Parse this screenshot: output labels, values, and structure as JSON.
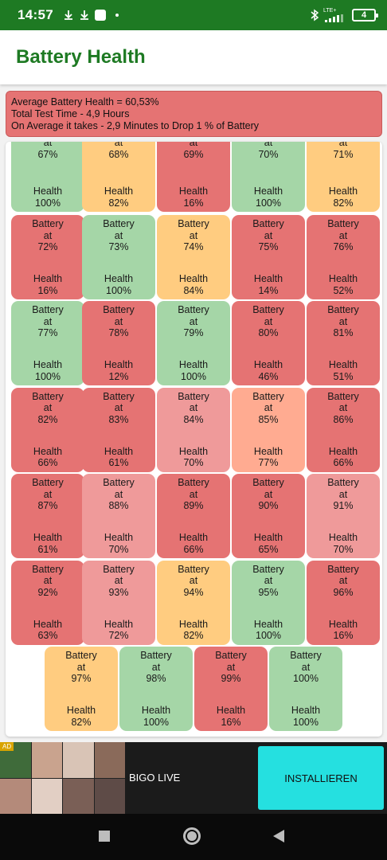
{
  "status_bar": {
    "time": "14:57",
    "network": "LTE+",
    "battery_level": "4",
    "icons": [
      "download-icon",
      "download-icon",
      "app-square-icon",
      "notification-dot-icon",
      "bluetooth-icon",
      "signal-icon",
      "battery-icon"
    ]
  },
  "app_bar": {
    "title": "Battery Health"
  },
  "summary": {
    "line1": "Average Battery Health = 60,53%",
    "line2": "Total Test Time - 4,9 Hours",
    "line3": "On Average it takes - 2,9 Minutes to Drop 1 % of Battery"
  },
  "colors": {
    "red": "#e57373",
    "green": "#a5d6a7",
    "orange": "#ffcc80",
    "pink": "#ef9a9a",
    "salmon": "#ffab91",
    "brand_green": "#1e7a23"
  },
  "cells": [
    {
      "top": "at",
      "pct": "67%",
      "health_label": "Health",
      "health": "100%",
      "color": "#a5d6a7"
    },
    {
      "top": "at",
      "pct": "68%",
      "health_label": "Health",
      "health": "82%",
      "color": "#ffcc80"
    },
    {
      "top": "at",
      "pct": "69%",
      "health_label": "Health",
      "health": "16%",
      "color": "#e57373"
    },
    {
      "top": "at",
      "pct": "70%",
      "health_label": "Health",
      "health": "100%",
      "color": "#a5d6a7"
    },
    {
      "top": "at",
      "pct": "71%",
      "health_label": "Health",
      "health": "82%",
      "color": "#ffcc80"
    },
    {
      "label": "Battery",
      "top": "at",
      "pct": "72%",
      "health_label": "Health",
      "health": "16%",
      "color": "#e57373"
    },
    {
      "label": "Battery",
      "top": "at",
      "pct": "73%",
      "health_label": "Health",
      "health": "100%",
      "color": "#a5d6a7"
    },
    {
      "label": "Battery",
      "top": "at",
      "pct": "74%",
      "health_label": "Health",
      "health": "84%",
      "color": "#ffcc80"
    },
    {
      "label": "Battery",
      "top": "at",
      "pct": "75%",
      "health_label": "Health",
      "health": "14%",
      "color": "#e57373"
    },
    {
      "label": "Battery",
      "top": "at",
      "pct": "76%",
      "health_label": "Health",
      "health": "52%",
      "color": "#e57373"
    },
    {
      "label": "Battery",
      "top": "at",
      "pct": "77%",
      "health_label": "Health",
      "health": "100%",
      "color": "#a5d6a7"
    },
    {
      "label": "Battery",
      "top": "at",
      "pct": "78%",
      "health_label": "Health",
      "health": "12%",
      "color": "#e57373"
    },
    {
      "label": "Battery",
      "top": "at",
      "pct": "79%",
      "health_label": "Health",
      "health": "100%",
      "color": "#a5d6a7"
    },
    {
      "label": "Battery",
      "top": "at",
      "pct": "80%",
      "health_label": "Health",
      "health": "46%",
      "color": "#e57373"
    },
    {
      "label": "Battery",
      "top": "at",
      "pct": "81%",
      "health_label": "Health",
      "health": "51%",
      "color": "#e57373"
    },
    {
      "label": "Battery",
      "top": "at",
      "pct": "82%",
      "health_label": "Health",
      "health": "66%",
      "color": "#e57373"
    },
    {
      "label": "Battery",
      "top": "at",
      "pct": "83%",
      "health_label": "Health",
      "health": "61%",
      "color": "#e57373"
    },
    {
      "label": "Battery",
      "top": "at",
      "pct": "84%",
      "health_label": "Health",
      "health": "70%",
      "color": "#ef9a9a"
    },
    {
      "label": "Battery",
      "top": "at",
      "pct": "85%",
      "health_label": "Health",
      "health": "77%",
      "color": "#ffab91"
    },
    {
      "label": "Battery",
      "top": "at",
      "pct": "86%",
      "health_label": "Health",
      "health": "66%",
      "color": "#e57373"
    },
    {
      "label": "Battery",
      "top": "at",
      "pct": "87%",
      "health_label": "Health",
      "health": "61%",
      "color": "#e57373"
    },
    {
      "label": "Battery",
      "top": "at",
      "pct": "88%",
      "health_label": "Health",
      "health": "70%",
      "color": "#ef9a9a"
    },
    {
      "label": "Battery",
      "top": "at",
      "pct": "89%",
      "health_label": "Health",
      "health": "66%",
      "color": "#e57373"
    },
    {
      "label": "Battery",
      "top": "at",
      "pct": "90%",
      "health_label": "Health",
      "health": "65%",
      "color": "#e57373"
    },
    {
      "label": "Battery",
      "top": "at",
      "pct": "91%",
      "health_label": "Health",
      "health": "70%",
      "color": "#ef9a9a"
    },
    {
      "label": "Battery",
      "top": "at",
      "pct": "92%",
      "health_label": "Health",
      "health": "63%",
      "color": "#e57373"
    },
    {
      "label": "Battery",
      "top": "at",
      "pct": "93%",
      "health_label": "Health",
      "health": "72%",
      "color": "#ef9a9a"
    },
    {
      "label": "Battery",
      "top": "at",
      "pct": "94%",
      "health_label": "Health",
      "health": "82%",
      "color": "#ffcc80"
    },
    {
      "label": "Battery",
      "top": "at",
      "pct": "95%",
      "health_label": "Health",
      "health": "100%",
      "color": "#a5d6a7"
    },
    {
      "label": "Battery",
      "top": "at",
      "pct": "96%",
      "health_label": "Health",
      "health": "16%",
      "color": "#e57373"
    },
    {
      "label": "Battery",
      "top": "at",
      "pct": "97%",
      "health_label": "Health",
      "health": "82%",
      "color": "#ffcc80"
    },
    {
      "label": "Battery",
      "top": "at",
      "pct": "98%",
      "health_label": "Health",
      "health": "100%",
      "color": "#a5d6a7"
    },
    {
      "label": "Battery",
      "top": "at",
      "pct": "99%",
      "health_label": "Health",
      "health": "16%",
      "color": "#e57373"
    },
    {
      "label": "Battery",
      "top": "at",
      "pct": "100%",
      "health_label": "Health",
      "health": "100%",
      "color": "#a5d6a7"
    }
  ],
  "ad": {
    "badge": "AD",
    "name": "BIGO LIVE",
    "install_label": "INSTALLIEREN",
    "thumb_colors": [
      "#3f6b3a",
      "#c9a38e",
      "#d9c4b6",
      "#8a6a5a",
      "#b48a7a",
      "#e2cfc4",
      "#7a5f56",
      "#5e4b47"
    ]
  },
  "nav": {
    "icons": [
      "recents-icon",
      "home-icon",
      "back-icon"
    ]
  }
}
